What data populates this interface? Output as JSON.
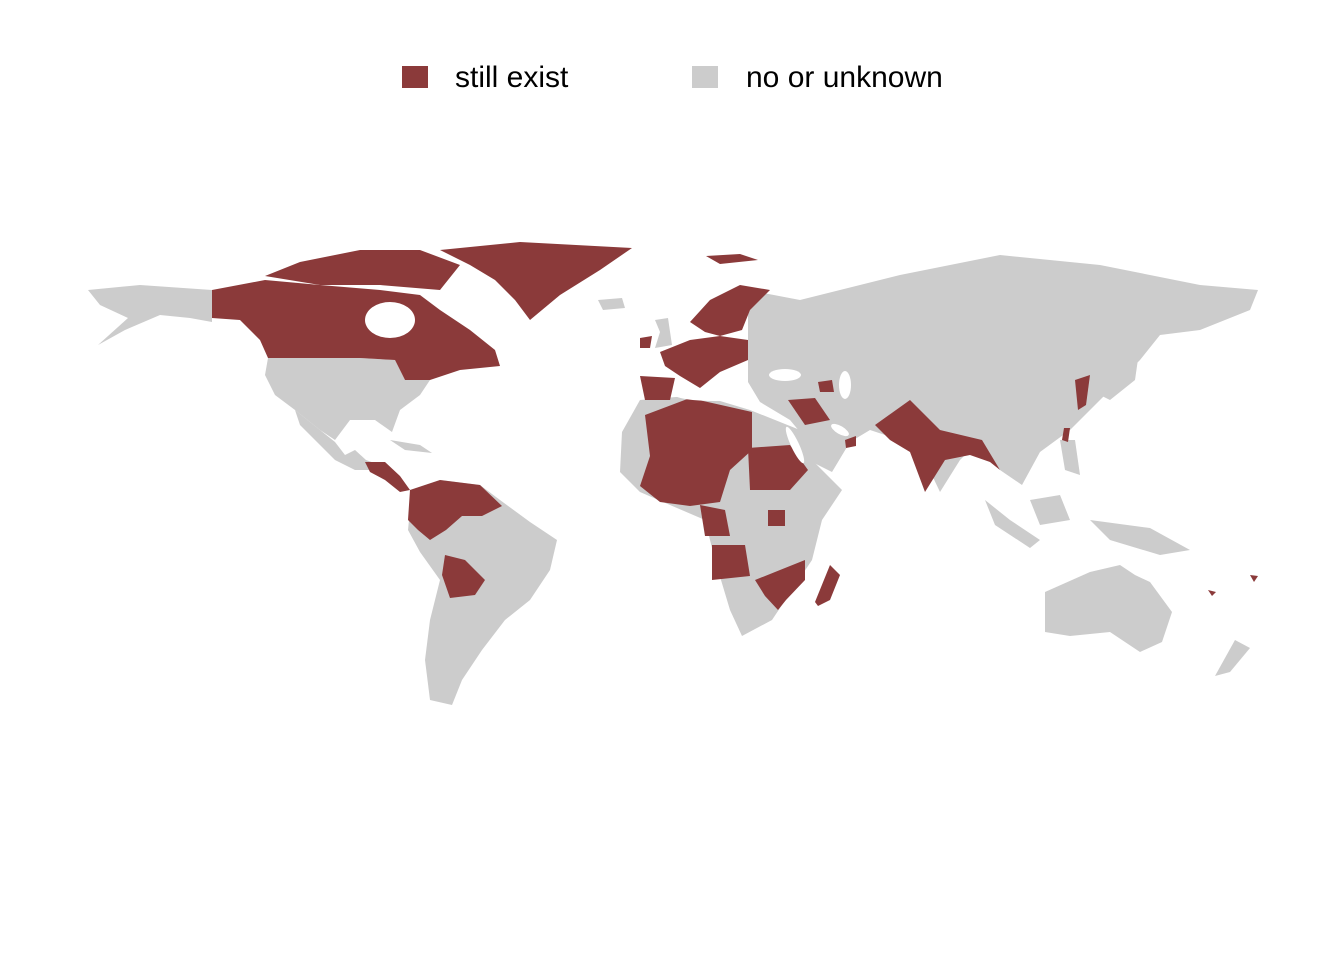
{
  "legend": {
    "items": [
      {
        "label": "still exist",
        "color": "#8b3a3a"
      },
      {
        "label": "no or unknown",
        "color": "#cccccc"
      }
    ],
    "placement": "top"
  },
  "map": {
    "type": "choropleth",
    "projection": "equirectangular",
    "colors": {
      "still_exist": "#8b3a3a",
      "no_or_unknown": "#cccccc",
      "background": "#ffffff"
    }
  }
}
